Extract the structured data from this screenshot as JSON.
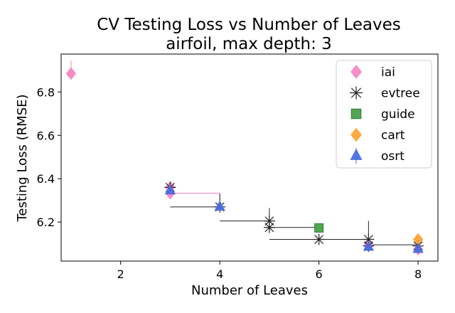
{
  "chart_data": {
    "type": "scatter",
    "title": "CV Testing Loss vs Number of Leaves",
    "subtitle": "airfoil, max depth: 3",
    "xlabel": "Number of Leaves",
    "ylabel": "Testing Loss (RMSE)",
    "xlim": [
      0.8,
      8.4
    ],
    "ylim": [
      6.02,
      6.975
    ],
    "xticks": [
      2,
      4,
      6,
      8
    ],
    "yticks": [
      6.2,
      6.4,
      6.6,
      6.8
    ],
    "grid": false,
    "legend_position": "top-right",
    "series": [
      {
        "name": "iai",
        "marker": "diamond",
        "color": "#f781bf",
        "points": [
          {
            "x": 1,
            "y": 6.885,
            "err_low": 6.885,
            "err_high": 6.945
          },
          {
            "x": 3,
            "y": 6.333
          },
          {
            "x": 3,
            "y": 6.36
          },
          {
            "x": 7,
            "y": 6.09
          },
          {
            "x": 8,
            "y": 6.075
          }
        ]
      },
      {
        "name": "evtree",
        "marker": "x",
        "color": "#222222",
        "points": [
          {
            "x": 3,
            "y": 6.36
          },
          {
            "x": 4,
            "y": 6.27
          },
          {
            "x": 5,
            "y": 6.205,
            "err_low": 6.16,
            "err_high": 6.265
          },
          {
            "x": 5,
            "y": 6.175
          },
          {
            "x": 6,
            "y": 6.12
          },
          {
            "x": 7,
            "y": 6.12,
            "err_low": 6.085,
            "err_high": 6.205
          },
          {
            "x": 7,
            "y": 6.09
          },
          {
            "x": 8,
            "y": 6.09
          }
        ]
      },
      {
        "name": "guide",
        "marker": "square",
        "color": "#4aa04a",
        "points": [
          {
            "x": 6,
            "y": 6.173
          }
        ]
      },
      {
        "name": "cart",
        "marker": "diamond",
        "color": "#ffa030",
        "points": [
          {
            "x": 8,
            "y": 6.12
          }
        ]
      },
      {
        "name": "osrt",
        "marker": "triangle",
        "color": "#4a6fe0",
        "points": [
          {
            "x": 3,
            "y": 6.345
          },
          {
            "x": 4,
            "y": 6.27
          },
          {
            "x": 7,
            "y": 6.085
          },
          {
            "x": 8,
            "y": 6.075
          }
        ]
      }
    ],
    "frontier_lines": [
      {
        "series": "iai",
        "color": "#f781bf",
        "points": [
          [
            3,
            6.333
          ],
          [
            4,
            6.333
          ],
          [
            4,
            6.27
          ]
        ]
      },
      {
        "series": "evtree",
        "color": "#222222",
        "points": [
          [
            3,
            6.27
          ],
          [
            4,
            6.27
          ],
          [
            4,
            6.33
          ]
        ]
      },
      {
        "series": "evtree",
        "color": "#222222",
        "points": [
          [
            4,
            6.205
          ],
          [
            5,
            6.205
          ],
          [
            5,
            6.175
          ]
        ]
      },
      {
        "series": "evtree",
        "color": "#222222",
        "points": [
          [
            5,
            6.175
          ],
          [
            6,
            6.175
          ]
        ]
      },
      {
        "series": "evtree",
        "color": "#222222",
        "points": [
          [
            5,
            6.12
          ],
          [
            7,
            6.12
          ],
          [
            7,
            6.09
          ]
        ]
      },
      {
        "series": "evtree",
        "color": "#222222",
        "points": [
          [
            7,
            6.095
          ],
          [
            8,
            6.095
          ]
        ]
      }
    ]
  }
}
